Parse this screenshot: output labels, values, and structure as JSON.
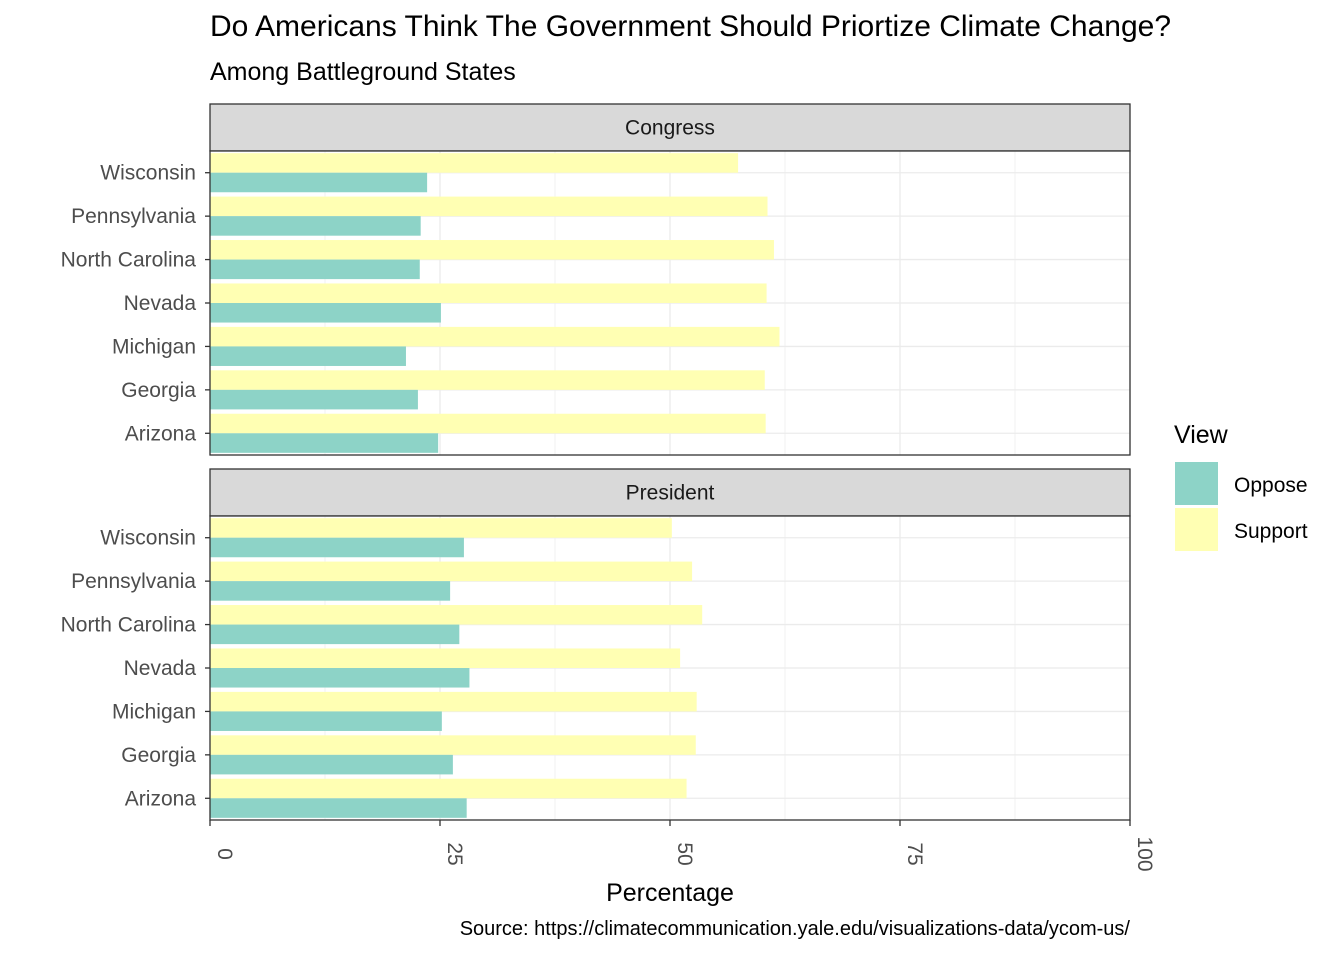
{
  "chart_data": {
    "type": "bar",
    "orientation": "horizontal",
    "title": "Do Americans Think The Government Should Priortize Climate Change?",
    "subtitle": "Among Battleground States",
    "caption": "Source: https://climatecommunication.yale.edu/visualizations-data/ycom-us/",
    "xlabel": "Percentage",
    "ylabel": "",
    "xlim": [
      0,
      100
    ],
    "xticks": [
      0,
      25,
      50,
      75,
      100
    ],
    "grid": true,
    "legend": {
      "title": "View",
      "position": "right",
      "entries": [
        {
          "name": "Oppose",
          "color": "#8DD3C7"
        },
        {
          "name": "Support",
          "color": "#FFFFB3"
        }
      ]
    },
    "categories": [
      "Wisconsin",
      "Pennsylvania",
      "North Carolina",
      "Nevada",
      "Michigan",
      "Georgia",
      "Arizona"
    ],
    "panels": [
      {
        "name": "Congress",
        "series": [
          {
            "name": "Support",
            "values": [
              57.4,
              60.6,
              61.3,
              60.5,
              61.9,
              60.3,
              60.4
            ]
          },
          {
            "name": "Oppose",
            "values": [
              23.6,
              22.9,
              22.8,
              25.1,
              21.3,
              22.6,
              24.8
            ]
          }
        ]
      },
      {
        "name": "President",
        "series": [
          {
            "name": "Support",
            "values": [
              50.2,
              52.4,
              53.5,
              51.1,
              52.9,
              52.8,
              51.8
            ]
          },
          {
            "name": "Oppose",
            "values": [
              27.6,
              26.1,
              27.1,
              28.2,
              25.2,
              26.4,
              27.9
            ]
          }
        ]
      }
    ]
  }
}
